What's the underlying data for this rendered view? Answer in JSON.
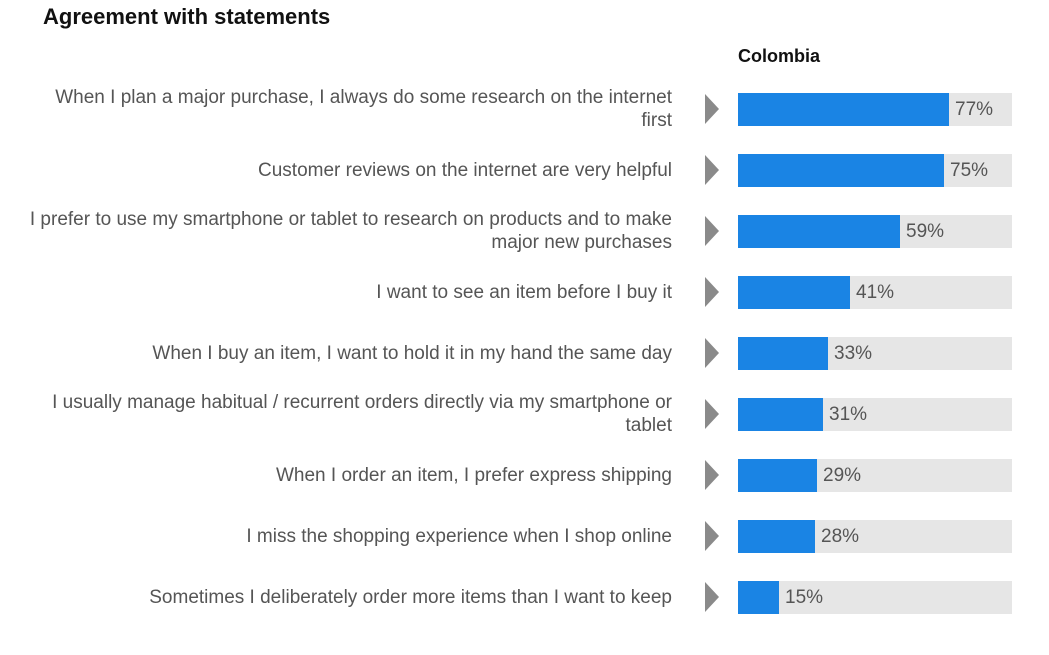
{
  "chart_data": {
    "type": "bar",
    "orientation": "horizontal",
    "title": "Agreement with statements",
    "series": [
      {
        "name": "Colombia",
        "color": "#1a84e4",
        "values": [
          77,
          75,
          59,
          41,
          33,
          31,
          29,
          28,
          15
        ]
      }
    ],
    "categories": [
      "When I plan a major purchase, I always do some research on the internet first",
      "Customer reviews on the internet are very helpful",
      "I prefer to use my smartphone or tablet to research on products and to make major new purchases",
      "I want to see an item before I buy it",
      "When I buy an item, I want to hold it in my hand the same day",
      "I usually manage habitual / recurrent orders directly via my smartphone or tablet",
      "When I order an item, I prefer express shipping",
      "I miss the shopping experience when I shop online",
      "Sometimes I deliberately order more items than I want to keep"
    ],
    "value_labels": [
      "77%",
      "75%",
      "59%",
      "41%",
      "33%",
      "31%",
      "29%",
      "28%",
      "15%"
    ],
    "xlim": [
      0,
      100
    ],
    "track_color": "#e6e6e6",
    "grid": false,
    "legend": false
  }
}
